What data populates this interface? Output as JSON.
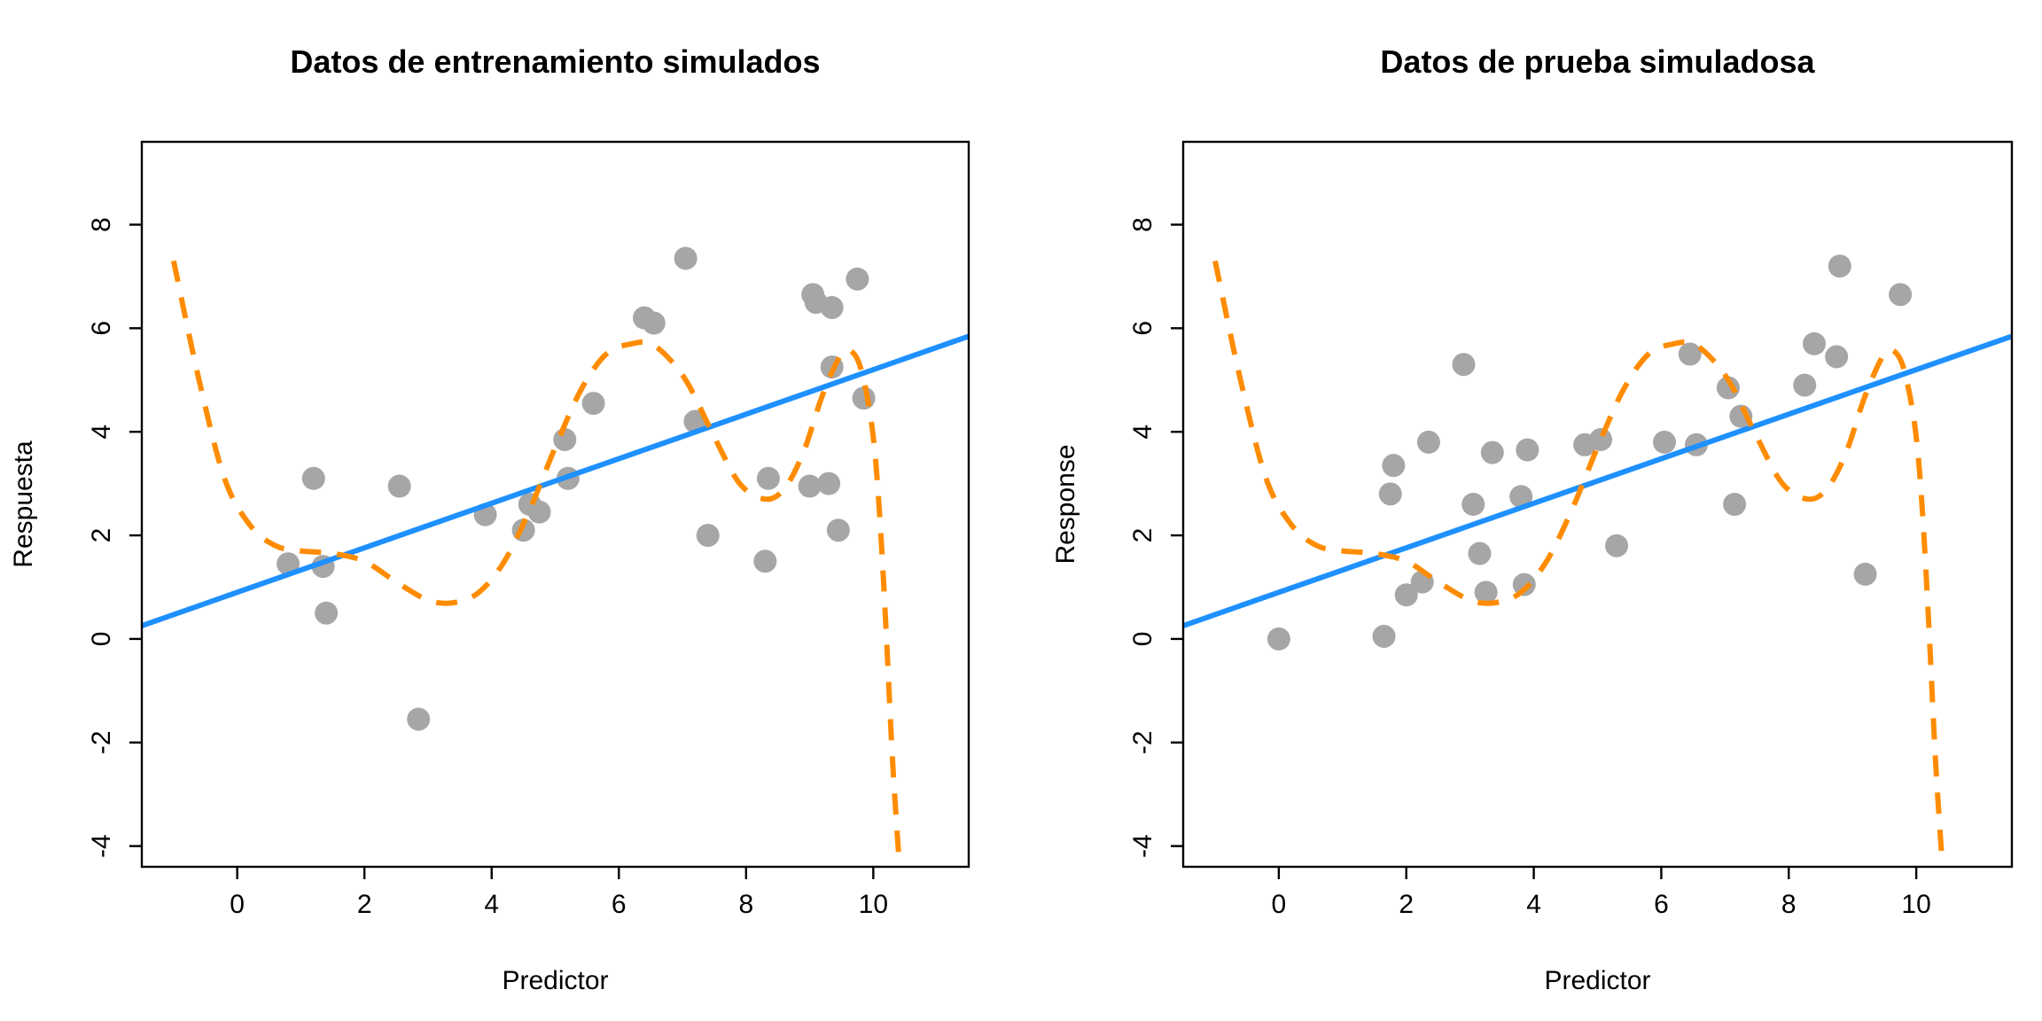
{
  "chart_data": [
    {
      "type": "scatter",
      "title": "Datos de entrenamiento simulados",
      "xlabel": "Predictor",
      "ylabel": "Respuesta",
      "xlim": [
        -1.5,
        11.5
      ],
      "ylim": [
        -4.4,
        9.6
      ],
      "xticks": [
        0,
        2,
        4,
        6,
        8,
        10
      ],
      "yticks": [
        -4,
        -2,
        0,
        2,
        4,
        6,
        8
      ],
      "grid": false,
      "colors": {
        "points": "#a6a6a6",
        "linear_fit": "#1e90ff",
        "flexible_fit": "#ff8c00"
      },
      "points": {
        "x": [
          0.8,
          1.2,
          1.35,
          1.4,
          2.55,
          2.85,
          3.9,
          4.5,
          4.6,
          4.75,
          5.15,
          5.2,
          5.6,
          6.4,
          6.55,
          7.05,
          7.2,
          7.4,
          8.3,
          8.35,
          9.0,
          9.05,
          9.1,
          9.3,
          9.35,
          9.35,
          9.45,
          9.75,
          9.85
        ],
        "y": [
          1.45,
          3.1,
          1.4,
          0.5,
          2.95,
          -1.55,
          2.4,
          2.1,
          2.6,
          2.45,
          3.85,
          3.1,
          4.55,
          6.2,
          6.1,
          7.35,
          4.2,
          2.0,
          1.5,
          3.1,
          2.95,
          6.65,
          6.5,
          3.0,
          6.4,
          5.25,
          2.1,
          6.95,
          4.65
        ]
      },
      "linear_fit": {
        "intercept": 0.9,
        "slope": 0.43
      },
      "flexible_fit": {
        "x": [
          -1.0,
          -0.6,
          -0.2,
          0.2,
          0.6,
          1.0,
          1.5,
          2.0,
          2.5,
          3.0,
          3.4,
          3.8,
          4.2,
          4.6,
          5.0,
          5.4,
          5.8,
          6.2,
          6.5,
          6.8,
          7.1,
          7.5,
          7.9,
          8.3,
          8.6,
          8.9,
          9.2,
          9.5,
          9.7,
          9.85,
          10.0,
          10.1,
          10.2,
          10.3,
          10.4
        ],
        "y": [
          7.3,
          5.0,
          3.1,
          2.2,
          1.8,
          1.7,
          1.65,
          1.5,
          1.1,
          0.75,
          0.7,
          0.9,
          1.5,
          2.5,
          3.7,
          4.8,
          5.5,
          5.7,
          5.7,
          5.4,
          4.9,
          3.9,
          3.0,
          2.7,
          2.9,
          3.6,
          4.7,
          5.5,
          5.5,
          5.0,
          3.9,
          2.4,
          0.2,
          -2.3,
          -4.2
        ]
      }
    },
    {
      "type": "scatter",
      "title": "Datos de prueba simuladosa",
      "xlabel": "Predictor",
      "ylabel": "Response",
      "xlim": [
        -1.5,
        11.5
      ],
      "ylim": [
        -4.4,
        9.6
      ],
      "xticks": [
        0,
        2,
        4,
        6,
        8,
        10
      ],
      "yticks": [
        -4,
        -2,
        0,
        2,
        4,
        6,
        8
      ],
      "grid": false,
      "colors": {
        "points": "#a6a6a6",
        "linear_fit": "#1e90ff",
        "flexible_fit": "#ff8c00"
      },
      "points": {
        "x": [
          0.0,
          1.65,
          1.75,
          1.8,
          2.0,
          2.25,
          2.35,
          2.9,
          3.05,
          3.15,
          3.25,
          3.35,
          3.8,
          3.85,
          3.9,
          4.8,
          5.05,
          5.3,
          6.05,
          6.45,
          6.55,
          7.05,
          7.15,
          7.25,
          8.25,
          8.4,
          8.75,
          8.8,
          9.2,
          9.75
        ],
        "y": [
          0.0,
          0.05,
          2.8,
          3.35,
          0.85,
          1.1,
          3.8,
          5.3,
          2.6,
          1.65,
          0.9,
          3.6,
          2.75,
          1.05,
          3.65,
          3.75,
          3.85,
          1.8,
          3.8,
          5.5,
          3.75,
          4.85,
          2.6,
          4.3,
          4.9,
          5.7,
          5.45,
          7.2,
          1.25,
          6.65
        ]
      },
      "linear_fit": {
        "intercept": 0.9,
        "slope": 0.43
      },
      "flexible_fit": {
        "x": [
          -1.0,
          -0.6,
          -0.2,
          0.2,
          0.6,
          1.0,
          1.5,
          2.0,
          2.5,
          3.0,
          3.4,
          3.8,
          4.2,
          4.6,
          5.0,
          5.4,
          5.8,
          6.2,
          6.5,
          6.8,
          7.1,
          7.5,
          7.9,
          8.3,
          8.6,
          8.9,
          9.2,
          9.5,
          9.7,
          9.85,
          10.0,
          10.1,
          10.2,
          10.3,
          10.4
        ],
        "y": [
          7.3,
          5.0,
          3.1,
          2.2,
          1.8,
          1.7,
          1.65,
          1.5,
          1.1,
          0.75,
          0.7,
          0.9,
          1.5,
          2.5,
          3.7,
          4.8,
          5.5,
          5.7,
          5.7,
          5.4,
          4.9,
          3.9,
          3.0,
          2.7,
          2.9,
          3.6,
          4.7,
          5.5,
          5.5,
          5.0,
          3.9,
          2.4,
          0.2,
          -2.3,
          -4.2
        ]
      }
    }
  ]
}
